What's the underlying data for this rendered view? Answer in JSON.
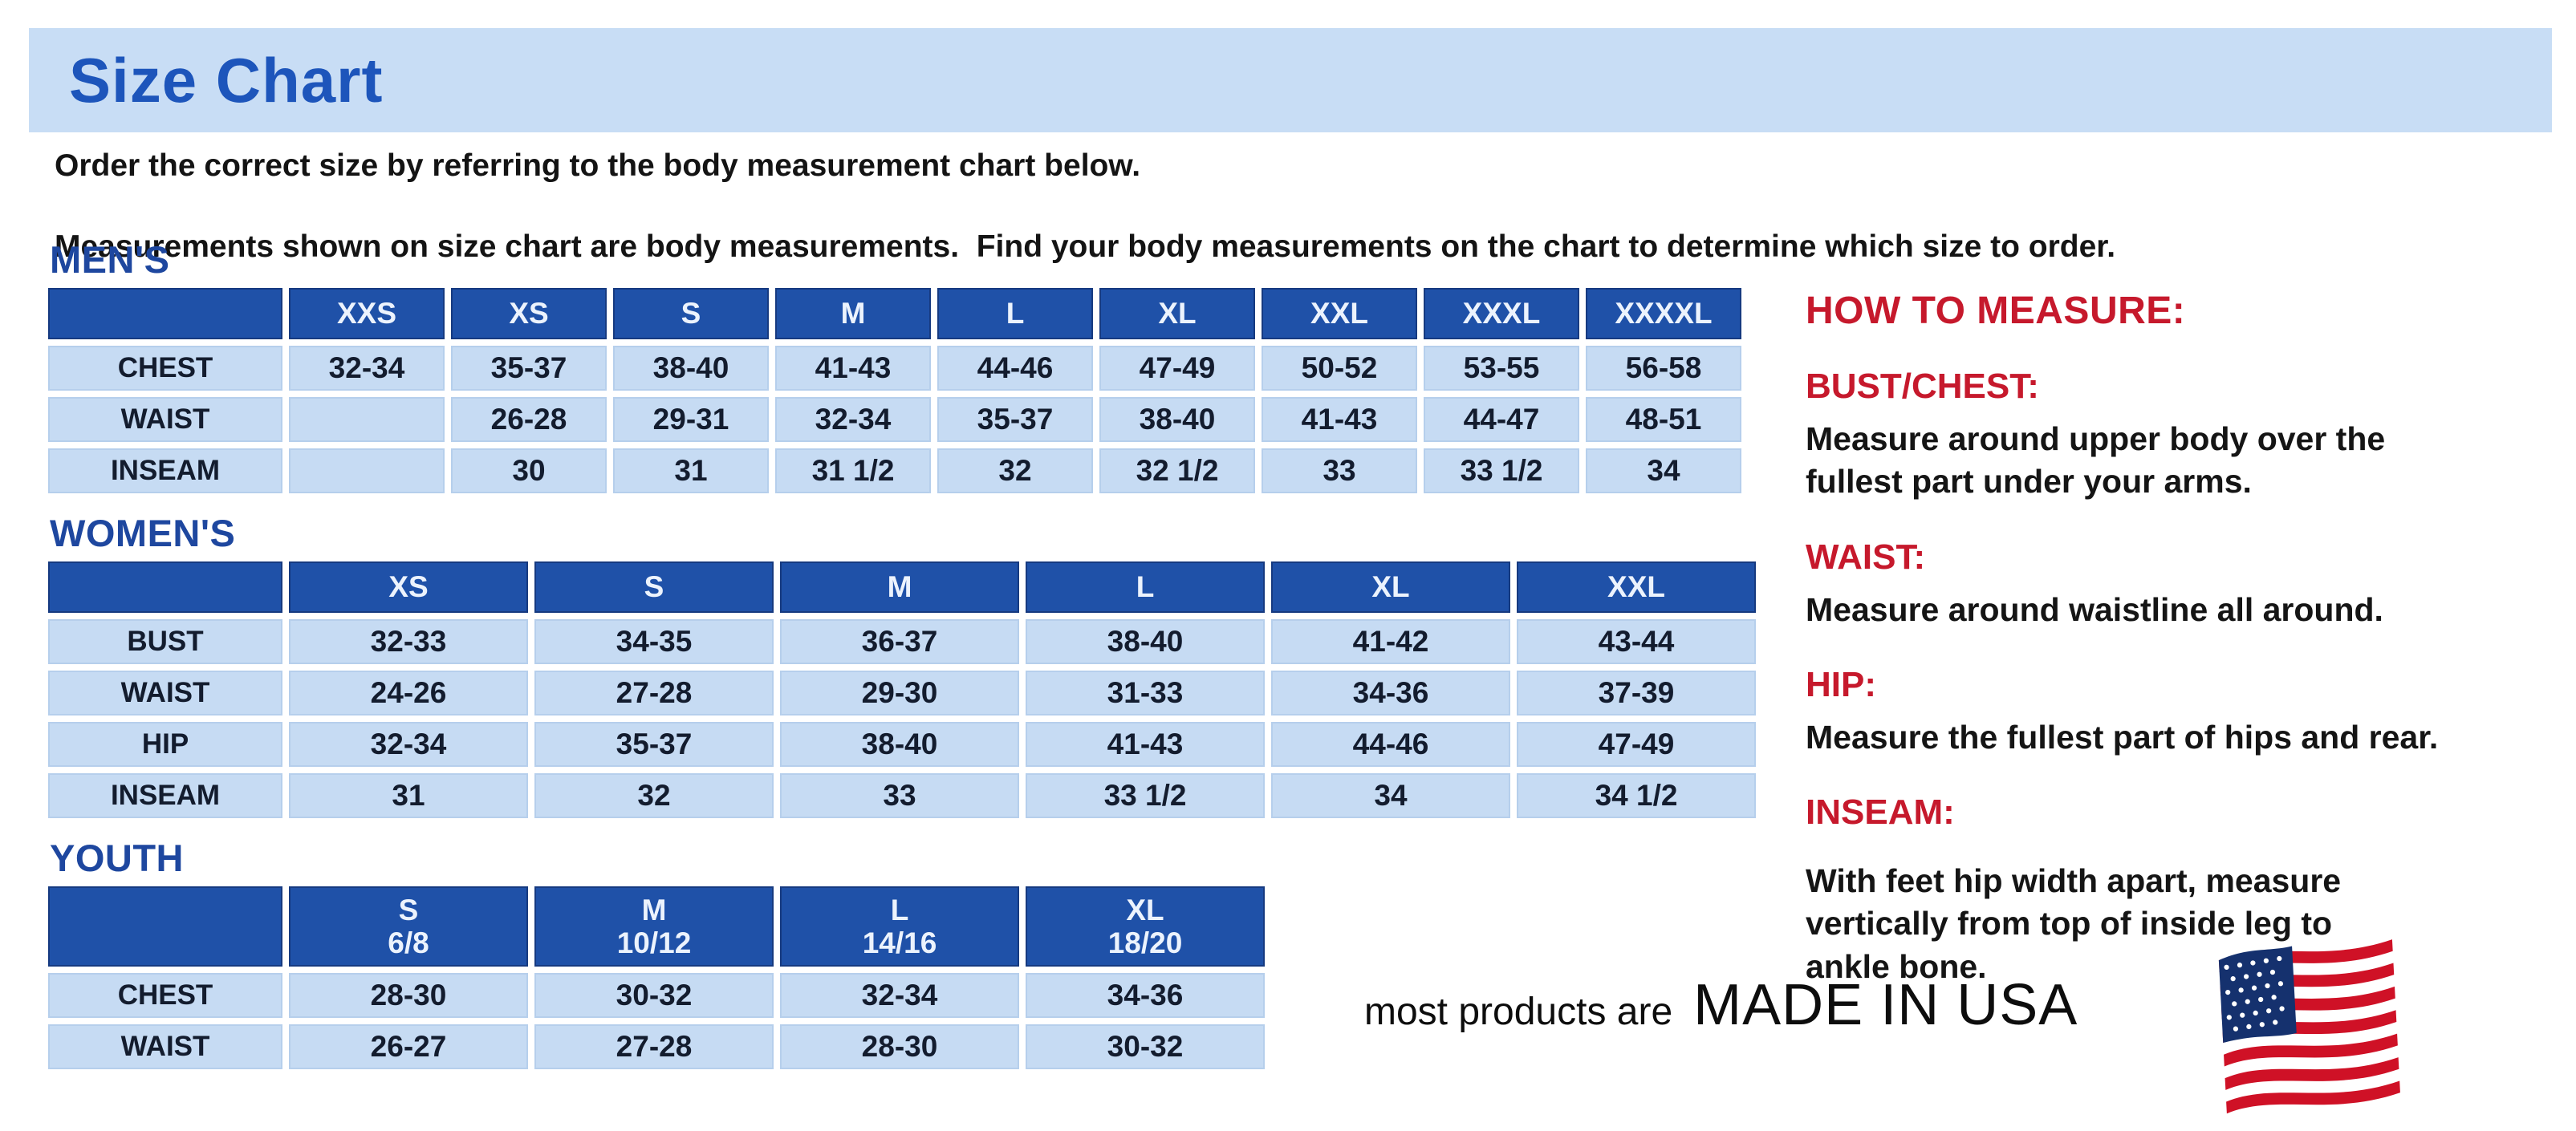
{
  "title": "Size Chart",
  "intro": {
    "line1": "Order the correct size by referring to the body measurement chart below.",
    "line2": "Measurements shown on size chart are body measurements.  Find your body measurements on the chart to determine which size to order."
  },
  "tables": {
    "mens": {
      "label": "MEN'S",
      "sizes": [
        "XXS",
        "XS",
        "S",
        "M",
        "L",
        "XL",
        "XXL",
        "XXXL",
        "XXXXL"
      ],
      "rows": [
        {
          "label": "CHEST",
          "values": [
            "32-34",
            "35-37",
            "38-40",
            "41-43",
            "44-46",
            "47-49",
            "50-52",
            "53-55",
            "56-58"
          ]
        },
        {
          "label": "WAIST",
          "values": [
            "",
            "26-28",
            "29-31",
            "32-34",
            "35-37",
            "38-40",
            "41-43",
            "44-47",
            "48-51"
          ]
        },
        {
          "label": "INSEAM",
          "values": [
            "",
            "30",
            "31",
            "31 1/2",
            "32",
            "32 1/2",
            "33",
            "33 1/2",
            "34"
          ]
        }
      ]
    },
    "womens": {
      "label": "WOMEN'S",
      "sizes": [
        "XS",
        "S",
        "M",
        "L",
        "XL",
        "XXL"
      ],
      "rows": [
        {
          "label": "BUST",
          "values": [
            "32-33",
            "34-35",
            "36-37",
            "38-40",
            "41-42",
            "43-44"
          ]
        },
        {
          "label": "WAIST",
          "values": [
            "24-26",
            "27-28",
            "29-30",
            "31-33",
            "34-36",
            "37-39"
          ]
        },
        {
          "label": "HIP",
          "values": [
            "32-34",
            "35-37",
            "38-40",
            "41-43",
            "44-46",
            "47-49"
          ]
        },
        {
          "label": "INSEAM",
          "values": [
            "31",
            "32",
            "33",
            "33 1/2",
            "34",
            "34 1/2"
          ]
        }
      ]
    },
    "youth": {
      "label": "YOUTH",
      "sizes": [
        {
          "size": "S",
          "range": "6/8"
        },
        {
          "size": "M",
          "range": "10/12"
        },
        {
          "size": "L",
          "range": "14/16"
        },
        {
          "size": "XL",
          "range": "18/20"
        }
      ],
      "rows": [
        {
          "label": "CHEST",
          "values": [
            "28-30",
            "30-32",
            "32-34",
            "34-36"
          ]
        },
        {
          "label": "WAIST",
          "values": [
            "26-27",
            "27-28",
            "28-30",
            "30-32"
          ]
        }
      ]
    }
  },
  "how_to_measure": {
    "title": "HOW TO MEASURE:",
    "items": [
      {
        "label": "BUST/CHEST:",
        "text": "Measure around upper body over the\nfullest part under your arms."
      },
      {
        "label": "WAIST:",
        "text": "Measure around waistline all around."
      },
      {
        "label": "HIP:",
        "text": "Measure the fullest part of hips and rear."
      },
      {
        "label": "INSEAM:",
        "text": "With feet hip width apart, measure\nvertically from top of inside leg to\nankle bone."
      }
    ]
  },
  "footer": {
    "prefix": "most products are",
    "made_in": "MADE IN USA",
    "flag_icon": "us-flag-icon"
  },
  "colors": {
    "banner_blue": "#c8ddf5",
    "title_blue": "#1d55bb",
    "section_blue": "#1e479f",
    "header_blue": "#1f51a8",
    "cell_blue": "#c6dbf3",
    "red": "#c6192c",
    "ink": "#131c2e"
  }
}
